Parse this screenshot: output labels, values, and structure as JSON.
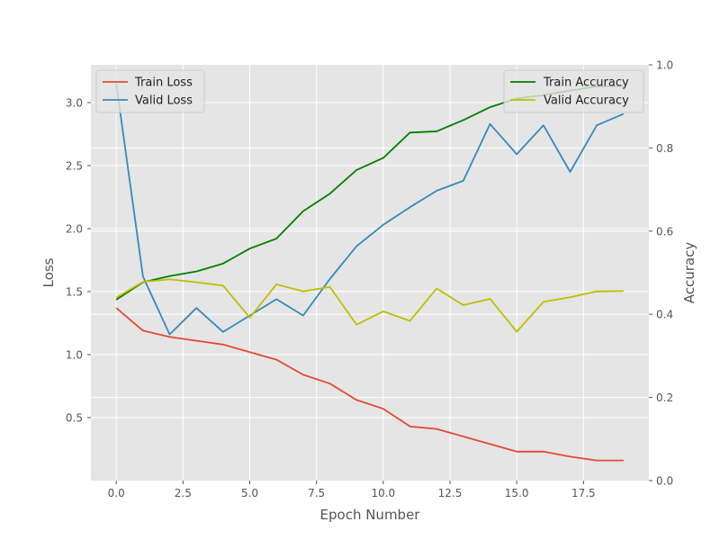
{
  "chart_data": {
    "type": "line",
    "title": "",
    "xlabel": "Epoch Number",
    "ylabel_left": "Loss",
    "ylabel_right": "Accuracy",
    "grid": true,
    "xlim": [
      -0.95,
      19.95
    ],
    "ylim_left": [
      0.0,
      3.3
    ],
    "ylim_right": [
      0.0,
      1.0
    ],
    "xticks": [
      0.0,
      2.5,
      5.0,
      7.5,
      10.0,
      12.5,
      15.0,
      17.5
    ],
    "xtick_labels": [
      "0.0",
      "2.5",
      "5.0",
      "7.5",
      "10.0",
      "12.5",
      "15.0",
      "17.5"
    ],
    "yticks_left": [
      0.5,
      1.0,
      1.5,
      2.0,
      2.5,
      3.0
    ],
    "ytick_labels_left": [
      "0.5",
      "1.0",
      "1.5",
      "2.0",
      "2.5",
      "3.0"
    ],
    "yticks_right": [
      0.0,
      0.2,
      0.4,
      0.6,
      0.8,
      1.0
    ],
    "ytick_labels_right": [
      "0.0",
      "0.2",
      "0.4",
      "0.6",
      "0.8",
      "1.0"
    ],
    "x": [
      0,
      1,
      2,
      3,
      4,
      5,
      6,
      7,
      8,
      9,
      10,
      11,
      12,
      13,
      14,
      15,
      16,
      17,
      18,
      19
    ],
    "loss_legend_position": "top-left",
    "accuracy_legend_position": "top-right",
    "series_loss": [
      {
        "name": "Train Loss",
        "color": "#E24A33",
        "values": [
          1.37,
          1.19,
          1.14,
          1.11,
          1.08,
          1.02,
          0.96,
          0.84,
          0.77,
          0.64,
          0.57,
          0.43,
          0.41,
          0.35,
          0.29,
          0.23,
          0.23,
          0.19,
          0.16,
          0.16
        ]
      },
      {
        "name": "Valid Loss",
        "color": "#348ABD",
        "values": [
          3.15,
          1.62,
          1.16,
          1.37,
          1.18,
          1.31,
          1.44,
          1.31,
          1.6,
          1.86,
          2.03,
          2.17,
          2.3,
          2.38,
          2.83,
          2.59,
          2.82,
          2.45,
          2.82,
          2.91
        ]
      }
    ],
    "series_accuracy": [
      {
        "name": "Train Accuracy",
        "color": "#008000",
        "values": [
          0.435,
          0.477,
          0.492,
          0.503,
          0.522,
          0.558,
          0.582,
          0.648,
          0.69,
          0.747,
          0.776,
          0.837,
          0.84,
          0.867,
          0.898,
          0.919,
          0.927,
          0.938,
          0.948,
          0.949
        ]
      },
      {
        "name": "Valid Accuracy",
        "color": "#BFBF00",
        "values": [
          0.44,
          0.478,
          0.484,
          0.477,
          0.469,
          0.392,
          0.472,
          0.455,
          0.466,
          0.375,
          0.407,
          0.384,
          0.462,
          0.422,
          0.437,
          0.358,
          0.43,
          0.441,
          0.455,
          0.456
        ]
      }
    ]
  }
}
